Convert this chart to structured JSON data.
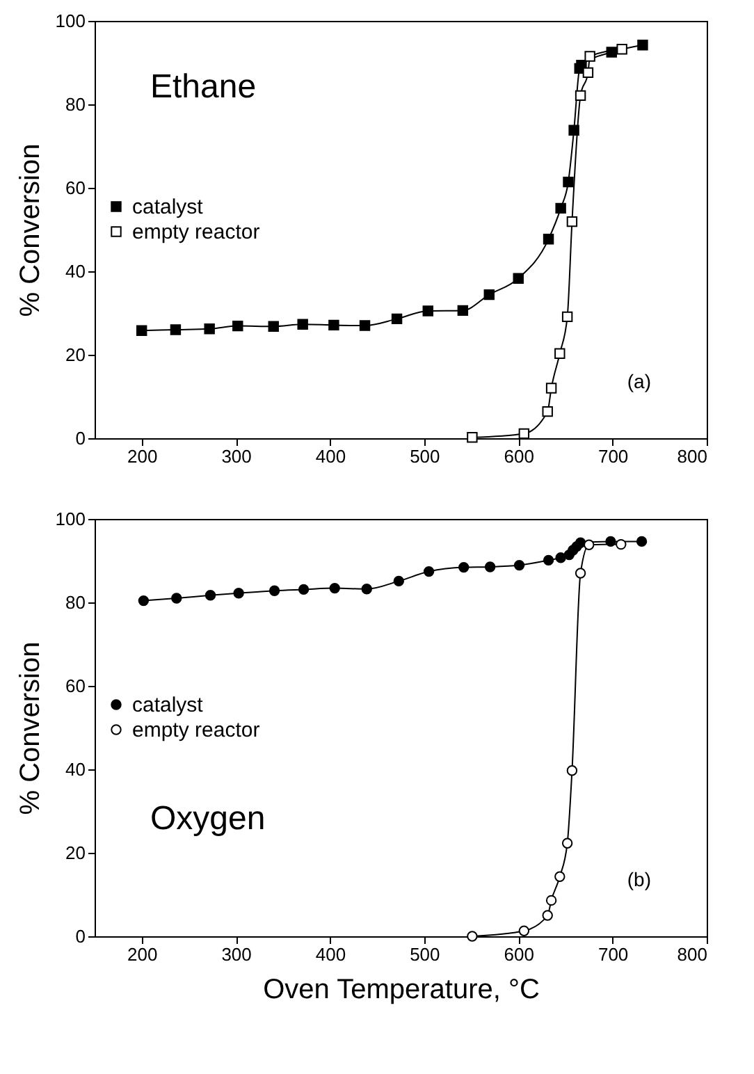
{
  "chart_data": [
    {
      "type": "line",
      "ylabel": "% Conversion",
      "xlim": [
        150,
        800
      ],
      "xticks": [
        200,
        300,
        400,
        500,
        600,
        700,
        800
      ],
      "ylim": [
        0,
        100
      ],
      "yticks": [
        0,
        20,
        40,
        60,
        80,
        100
      ],
      "marker": "square",
      "legend": "left",
      "annotations": [
        "Ethane",
        "(a)"
      ],
      "series": [
        {
          "name": "catalyst",
          "color": "#000000",
          "x": [
            200,
            236,
            272,
            302,
            340,
            371,
            404,
            437,
            471,
            504,
            541,
            569,
            600,
            632,
            645,
            653,
            659,
            665,
            667,
            699,
            732
          ],
          "values": [
            25.8,
            26.0,
            26.2,
            26.9,
            26.8,
            27.3,
            27.1,
            27.0,
            28.6,
            30.5,
            30.6,
            34.4,
            38.3,
            47.7,
            55.1,
            61.4,
            73.8,
            88.6,
            89.4,
            92.5,
            94.2
          ]
        },
        {
          "name": "empty reactor",
          "color": "#000000",
          "x": [
            551,
            606,
            631,
            635,
            644,
            652,
            657,
            666,
            674,
            676,
            710
          ],
          "values": [
            0.2,
            1.1,
            6.4,
            12.0,
            20.3,
            29.1,
            51.9,
            82.1,
            87.6,
            91.5,
            93.2
          ]
        }
      ]
    },
    {
      "type": "line",
      "xlabel": "Oven Temperature, °C",
      "ylabel": "% Conversion",
      "xlim": [
        150,
        800
      ],
      "xticks": [
        200,
        300,
        400,
        500,
        600,
        700,
        800
      ],
      "ylim": [
        0,
        100
      ],
      "yticks": [
        0,
        20,
        40,
        60,
        80,
        100
      ],
      "marker": "circle",
      "legend": "left",
      "annotations": [
        "Oxygen",
        "(b)"
      ],
      "series": [
        {
          "name": "catalyst",
          "color": "#000000",
          "x": [
            202,
            237,
            273,
            303,
            341,
            372,
            405,
            439,
            473,
            505,
            542,
            570,
            601,
            632,
            645,
            654,
            658,
            662,
            666,
            698,
            731
          ],
          "values": [
            80.4,
            81.0,
            81.7,
            82.2,
            82.8,
            83.1,
            83.4,
            83.2,
            85.1,
            87.4,
            88.4,
            88.5,
            88.9,
            90.1,
            90.7,
            91.4,
            92.5,
            93.4,
            94.3,
            94.6,
            94.6
          ]
        },
        {
          "name": "empty reactor",
          "color": "#000000",
          "x": [
            551,
            606,
            631,
            635,
            644,
            652,
            657,
            666,
            675,
            709
          ],
          "values": [
            0,
            1.3,
            5.0,
            8.6,
            14.3,
            22.3,
            39.7,
            87.0,
            93.8,
            93.9
          ]
        }
      ]
    }
  ]
}
